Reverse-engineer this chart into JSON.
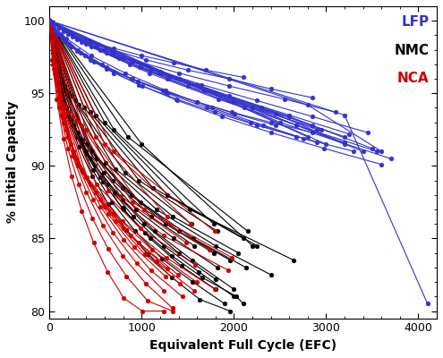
{
  "title": "",
  "xlabel": "Equivalent Full Cycle (EFC)",
  "ylabel": "% Initial Capacity",
  "xlim": [
    0,
    4200
  ],
  "ylim": [
    79.5,
    101
  ],
  "yticks": [
    80,
    85,
    90,
    95,
    100
  ],
  "xticks": [
    0,
    1000,
    2000,
    3000,
    4000
  ],
  "legend_labels": [
    "LFP",
    "NMC",
    "NCA"
  ],
  "legend_colors": [
    "#3333CC",
    "#000000",
    "#CC0000"
  ],
  "background_color": "#ffffff",
  "LFP_color": "#3333CC",
  "NMC_color": "#000000",
  "NCA_color": "#CC0000",
  "marker": "o",
  "markersize": 3.5,
  "linewidth": 0.8,
  "LFP_series": [
    {
      "x": [
        0,
        100,
        250,
        450,
        700,
        1000,
        1350,
        1700,
        2100
      ],
      "y": [
        100,
        99.5,
        99.0,
        98.5,
        98.1,
        97.6,
        97.1,
        96.6,
        96.1
      ]
    },
    {
      "x": [
        0,
        150,
        380,
        680,
        1050,
        1500,
        1950,
        2400,
        2850
      ],
      "y": [
        100,
        99.3,
        98.6,
        98.0,
        97.3,
        96.6,
        96.0,
        95.3,
        94.7
      ]
    },
    {
      "x": [
        0,
        200,
        500,
        900,
        1400,
        1950,
        2550,
        3100
      ],
      "y": [
        100,
        99.1,
        98.2,
        97.3,
        96.4,
        95.5,
        94.6,
        93.7
      ]
    },
    {
      "x": [
        0,
        250,
        620,
        1100,
        1650,
        2250,
        2850,
        3450
      ],
      "y": [
        100,
        98.9,
        97.8,
        96.7,
        95.6,
        94.5,
        93.4,
        92.3
      ]
    },
    {
      "x": [
        0,
        300,
        750,
        1300,
        1950,
        2600,
        3250
      ],
      "y": [
        100,
        98.7,
        97.4,
        96.1,
        94.8,
        93.5,
        92.2
      ]
    },
    {
      "x": [
        0,
        350,
        870,
        1500,
        2200,
        2950
      ],
      "y": [
        100,
        98.5,
        97.0,
        95.5,
        94.0,
        92.5
      ]
    },
    {
      "x": [
        0,
        80,
        210,
        390,
        620,
        900,
        1230,
        1600,
        2010,
        2450
      ],
      "y": [
        100,
        99.2,
        98.4,
        97.6,
        96.8,
        96.0,
        95.2,
        94.4,
        93.6,
        92.8
      ]
    },
    {
      "x": [
        0,
        120,
        310,
        570,
        890,
        1280,
        1710,
        2180,
        2680
      ],
      "y": [
        100,
        99.0,
        98.0,
        97.0,
        96.0,
        95.0,
        94.0,
        93.0,
        92.0
      ]
    },
    {
      "x": [
        0,
        180,
        450,
        820,
        1260,
        1760,
        2320,
        2900
      ],
      "y": [
        100,
        98.8,
        97.6,
        96.4,
        95.2,
        94.0,
        92.8,
        91.6
      ]
    },
    {
      "x": [
        0,
        400,
        980,
        1680,
        2450,
        3200
      ],
      "y": [
        100,
        98.4,
        96.8,
        95.2,
        93.6,
        91.5
      ]
    },
    {
      "x": [
        0,
        500,
        1200,
        2000,
        2850
      ],
      "y": [
        100,
        98.2,
        96.4,
        94.6,
        92.8
      ]
    },
    {
      "x": [
        0,
        600,
        1400,
        2300,
        3200
      ],
      "y": [
        100,
        98.0,
        96.0,
        94.0,
        92.0
      ]
    },
    {
      "x": [
        0,
        700,
        1600,
        2600,
        3500
      ],
      "y": [
        100,
        97.8,
        95.6,
        93.4,
        91.2
      ]
    },
    {
      "x": [
        0,
        800,
        1800,
        2900
      ],
      "y": [
        100,
        97.5,
        95.0,
        92.5
      ]
    },
    {
      "x": [
        0,
        900,
        2000,
        3200
      ],
      "y": [
        100,
        97.2,
        94.4,
        91.6
      ]
    },
    {
      "x": [
        0,
        1000,
        2200,
        3400
      ],
      "y": [
        100,
        97.0,
        94.0,
        91.0
      ]
    },
    {
      "x": [
        0,
        1200,
        2500,
        3700
      ],
      "y": [
        100,
        96.5,
        93.0,
        90.5
      ]
    },
    {
      "x": [
        0,
        1400,
        2800
      ],
      "y": [
        100,
        96.0,
        92.0
      ]
    },
    {
      "x": [
        0,
        60,
        160,
        300,
        480,
        700,
        960,
        1260,
        1600,
        1980,
        2400,
        2850
      ],
      "y": [
        100,
        99.3,
        98.6,
        97.9,
        97.2,
        96.5,
        95.8,
        95.1,
        94.4,
        93.7,
        93.0,
        92.3
      ]
    },
    {
      "x": [
        0,
        90,
        240,
        440,
        700,
        1010,
        1380,
        1790,
        2250,
        2750,
        3300
      ],
      "y": [
        100,
        99.1,
        98.2,
        97.3,
        96.4,
        95.5,
        94.6,
        93.7,
        92.8,
        91.9,
        91.0
      ]
    },
    {
      "x": [
        0,
        130,
        340,
        620,
        970,
        1390,
        1870,
        2400,
        2980,
        3600
      ],
      "y": [
        100,
        98.9,
        97.8,
        96.7,
        95.6,
        94.5,
        93.4,
        92.3,
        91.2,
        90.1
      ]
    },
    {
      "x": [
        0,
        450,
        1080,
        1830,
        2680,
        3550
      ],
      "y": [
        100,
        98.2,
        96.4,
        94.6,
        92.8,
        91.0
      ]
    },
    {
      "x": [
        0,
        550,
        1280,
        2110,
        3000
      ],
      "y": [
        100,
        98.0,
        96.0,
        94.0,
        91.5
      ]
    },
    {
      "x": [
        0,
        2800,
        3600
      ],
      "y": [
        100,
        94.2,
        91.0
      ]
    },
    {
      "x": [
        0,
        3200,
        4100
      ],
      "y": [
        100,
        93.5,
        80.5
      ]
    }
  ],
  "NMC_series": [
    {
      "x": [
        0,
        50,
        130,
        250,
        400,
        580,
        790,
        1040,
        1330,
        1660,
        2030,
        2100
      ],
      "y": [
        100,
        97.5,
        95.0,
        92.8,
        90.8,
        88.9,
        87.1,
        85.4,
        83.8,
        82.3,
        81.0,
        80.5
      ]
    },
    {
      "x": [
        0,
        60,
        155,
        295,
        470,
        680,
        930,
        1220,
        1555,
        1900
      ],
      "y": [
        100,
        97.2,
        94.5,
        92.0,
        89.7,
        87.5,
        85.5,
        83.6,
        82.0,
        80.5
      ]
    },
    {
      "x": [
        0,
        70,
        180,
        345,
        550,
        800,
        1090,
        1430,
        1800
      ],
      "y": [
        100,
        97.0,
        94.0,
        91.5,
        89.2,
        87.0,
        85.0,
        83.1,
        81.5
      ]
    },
    {
      "x": [
        0,
        80,
        205,
        395,
        630,
        910,
        1240,
        1620,
        2000
      ],
      "y": [
        100,
        96.8,
        93.7,
        91.0,
        88.7,
        86.5,
        84.5,
        82.7,
        81.0
      ]
    },
    {
      "x": [
        0,
        90,
        230,
        445,
        710,
        1030,
        1400,
        1800
      ],
      "y": [
        100,
        96.5,
        93.2,
        90.5,
        88.2,
        86.0,
        84.0,
        82.2
      ]
    },
    {
      "x": [
        0,
        100,
        255,
        495,
        790,
        1140,
        1550,
        2000
      ],
      "y": [
        100,
        96.2,
        92.8,
        90.0,
        87.7,
        85.5,
        83.5,
        81.5
      ]
    },
    {
      "x": [
        0,
        120,
        305,
        590,
        940,
        1350,
        1820
      ],
      "y": [
        100,
        96.0,
        92.3,
        89.5,
        87.0,
        85.0,
        83.0
      ]
    },
    {
      "x": [
        0,
        140,
        360,
        690,
        1100,
        1570
      ],
      "y": [
        100,
        95.7,
        91.8,
        89.0,
        86.5,
        84.5
      ]
    },
    {
      "x": [
        0,
        160,
        410,
        790,
        1260,
        1780
      ],
      "y": [
        100,
        95.5,
        91.5,
        88.5,
        86.0,
        84.0
      ]
    },
    {
      "x": [
        0,
        180,
        460,
        890,
        1400,
        1960
      ],
      "y": [
        100,
        95.2,
        91.0,
        88.0,
        85.5,
        83.5
      ]
    },
    {
      "x": [
        0,
        200,
        510,
        990,
        1560,
        2130
      ],
      "y": [
        100,
        95.0,
        90.5,
        87.5,
        85.0,
        83.0
      ]
    },
    {
      "x": [
        0,
        40,
        105,
        200,
        320,
        465,
        635,
        835,
        1065,
        1330,
        1630,
        1960
      ],
      "y": [
        100,
        97.8,
        95.6,
        93.4,
        91.3,
        89.3,
        87.4,
        85.6,
        83.9,
        82.3,
        80.8,
        80.0
      ]
    },
    {
      "x": [
        0,
        240,
        610,
        1160,
        1800,
        2400
      ],
      "y": [
        100,
        94.8,
        90.2,
        87.0,
        84.5,
        82.5
      ]
    },
    {
      "x": [
        0,
        280,
        715,
        1340,
        2050
      ],
      "y": [
        100,
        94.5,
        89.8,
        86.5,
        84.0
      ]
    },
    {
      "x": [
        0,
        320,
        820,
        1540
      ],
      "y": [
        100,
        94.2,
        89.5,
        86.0
      ]
    },
    {
      "x": [
        0,
        380,
        970,
        1820
      ],
      "y": [
        100,
        94.0,
        89.0,
        85.5
      ]
    },
    {
      "x": [
        0,
        440,
        1120,
        2100
      ],
      "y": [
        100,
        93.7,
        88.5,
        85.0
      ]
    },
    {
      "x": [
        0,
        500,
        1280,
        2250
      ],
      "y": [
        100,
        93.5,
        88.0,
        84.5
      ]
    },
    {
      "x": [
        0,
        600,
        1520,
        2650
      ],
      "y": [
        100,
        93.0,
        87.0,
        83.5
      ]
    },
    {
      "x": [
        0,
        700,
        1780
      ],
      "y": [
        100,
        92.5,
        86.0
      ]
    },
    {
      "x": [
        0,
        850,
        2150
      ],
      "y": [
        100,
        92.0,
        85.5
      ]
    },
    {
      "x": [
        0,
        1000,
        2200
      ],
      "y": [
        100,
        91.5,
        84.5
      ]
    }
  ],
  "NCA_series": [
    {
      "x": [
        0,
        40,
        105,
        200,
        320,
        465,
        635,
        835,
        1065,
        1335
      ],
      "y": [
        100,
        97.0,
        94.0,
        91.2,
        88.7,
        86.4,
        84.3,
        82.4,
        80.7,
        80.0
      ]
    },
    {
      "x": [
        0,
        50,
        130,
        250,
        400,
        580,
        795,
        1045,
        1335
      ],
      "y": [
        100,
        96.7,
        93.5,
        90.7,
        88.2,
        85.9,
        83.8,
        81.9,
        80.2
      ]
    },
    {
      "x": [
        0,
        60,
        155,
        295,
        475,
        690,
        945,
        1240
      ],
      "y": [
        100,
        96.4,
        93.0,
        90.2,
        87.7,
        85.4,
        83.3,
        81.4
      ]
    },
    {
      "x": [
        0,
        70,
        180,
        345,
        555,
        805,
        1100,
        1440
      ],
      "y": [
        100,
        96.1,
        92.5,
        89.7,
        87.2,
        84.9,
        82.8,
        81.0
      ]
    },
    {
      "x": [
        0,
        80,
        205,
        395,
        635,
        920,
        1255
      ],
      "y": [
        100,
        95.8,
        92.0,
        89.2,
        86.7,
        84.4,
        82.4
      ]
    },
    {
      "x": [
        0,
        90,
        230,
        445,
        715,
        1035,
        1410
      ],
      "y": [
        100,
        95.5,
        91.5,
        88.7,
        86.2,
        83.9,
        81.9
      ]
    },
    {
      "x": [
        0,
        100,
        260,
        500,
        800,
        1160,
        1570
      ],
      "y": [
        100,
        95.2,
        91.0,
        88.2,
        85.7,
        83.4,
        81.4
      ]
    },
    {
      "x": [
        0,
        110,
        285,
        550,
        885,
        1280
      ],
      "y": [
        100,
        94.9,
        90.5,
        87.7,
        85.2,
        82.9
      ]
    },
    {
      "x": [
        0,
        120,
        310,
        600,
        965,
        1395
      ],
      "y": [
        100,
        94.6,
        90.0,
        87.2,
        84.7,
        82.5
      ]
    },
    {
      "x": [
        0,
        140,
        360,
        695,
        1115,
        1595
      ],
      "y": [
        100,
        94.3,
        89.6,
        86.7,
        84.2,
        82.0
      ]
    },
    {
      "x": [
        0,
        160,
        410,
        790,
        1265,
        1795
      ],
      "y": [
        100,
        94.0,
        89.2,
        86.2,
        83.7,
        81.5
      ]
    },
    {
      "x": [
        0,
        30,
        80,
        150,
        240,
        350,
        480,
        630,
        805,
        1005,
        1235
      ],
      "y": [
        100,
        97.3,
        94.6,
        91.9,
        89.3,
        86.9,
        84.7,
        82.7,
        80.9,
        80.0,
        80.0
      ]
    },
    {
      "x": [
        0,
        200,
        510,
        985,
        1575
      ],
      "y": [
        100,
        93.7,
        88.7,
        85.7,
        83.2
      ]
    },
    {
      "x": [
        0,
        250,
        640,
        1235,
        1940
      ],
      "y": [
        100,
        93.4,
        88.3,
        85.2,
        82.8
      ]
    },
    {
      "x": [
        0,
        300,
        770,
        1485
      ],
      "y": [
        100,
        93.1,
        87.9,
        84.7
      ]
    },
    {
      "x": [
        0,
        350,
        900,
        1735
      ],
      "y": [
        100,
        92.8,
        87.5,
        84.2
      ]
    },
    {
      "x": [
        0,
        400,
        1025,
        1975
      ],
      "y": [
        100,
        92.5,
        87.0,
        83.7
      ]
    },
    {
      "x": [
        0,
        500,
        1280
      ],
      "y": [
        100,
        92.0,
        86.5
      ]
    },
    {
      "x": [
        0,
        600,
        1535
      ],
      "y": [
        100,
        91.5,
        86.0
      ]
    },
    {
      "x": [
        0,
        700,
        1790
      ],
      "y": [
        100,
        91.0,
        85.5
      ]
    }
  ]
}
